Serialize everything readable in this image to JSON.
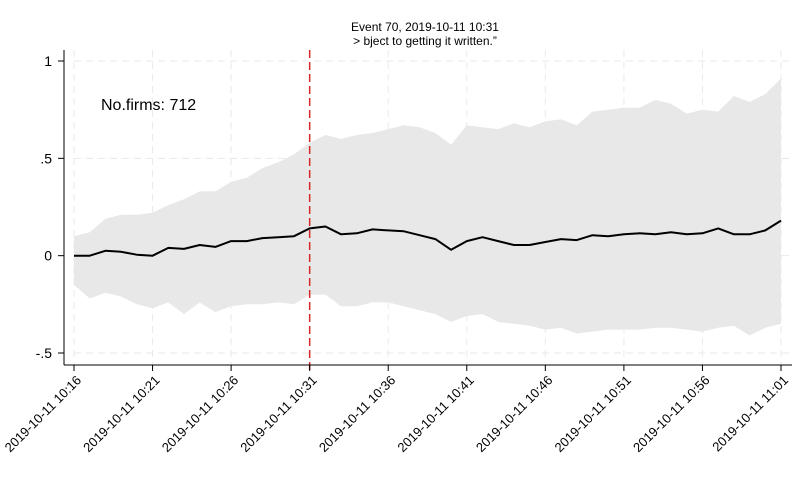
{
  "chart_data": {
    "type": "line",
    "title": "Event 70, 2019-10-11 10:31",
    "subtitle": "> bject to getting it written.”",
    "annotation": "No.firms: 712",
    "x": [
      "10:16",
      "10:17",
      "10:18",
      "10:19",
      "10:20",
      "10:21",
      "10:22",
      "10:23",
      "10:24",
      "10:25",
      "10:26",
      "10:27",
      "10:28",
      "10:29",
      "10:30",
      "10:31",
      "10:32",
      "10:33",
      "10:34",
      "10:35",
      "10:36",
      "10:37",
      "10:38",
      "10:39",
      "10:40",
      "10:41",
      "10:42",
      "10:43",
      "10:44",
      "10:45",
      "10:46",
      "10:47",
      "10:48",
      "10:49",
      "10:50",
      "10:51",
      "10:52",
      "10:53",
      "10:54",
      "10:55",
      "10:56",
      "10:57",
      "10:58",
      "10:59",
      "10:60",
      "11:01"
    ],
    "x_tick_labels": [
      "2019-10-11 10:16",
      "2019-10-11 10:21",
      "2019-10-11 10:26",
      "2019-10-11 10:31",
      "2019-10-11 10:36",
      "2019-10-11 10:41",
      "2019-10-11 10:46",
      "2019-10-11 10:51",
      "2019-10-11 10:56",
      "2019-10-11 11:01"
    ],
    "y_ticks": [
      {
        "value": 1,
        "label": "1"
      },
      {
        "value": 0.5,
        "label": ".5"
      },
      {
        "value": 0,
        "label": "0"
      },
      {
        "value": -0.5,
        "label": "-.5"
      }
    ],
    "ylim": [
      -0.55,
      1.05
    ],
    "event_minute": 15,
    "series": [
      {
        "type": "line",
        "color": "#000000",
        "values": [
          0.0,
          0.0,
          0.025,
          0.02,
          0.005,
          0.0,
          0.04,
          0.035,
          0.055,
          0.045,
          0.075,
          0.075,
          0.09,
          0.095,
          0.1,
          0.14,
          0.15,
          0.11,
          0.115,
          0.135,
          0.13,
          0.125,
          0.105,
          0.085,
          0.03,
          0.075,
          0.095,
          0.075,
          0.055,
          0.055,
          0.07,
          0.085,
          0.08,
          0.105,
          0.1,
          0.11,
          0.115,
          0.11,
          0.12,
          0.11,
          0.115,
          0.14,
          0.11,
          0.11,
          0.13,
          0.18
        ]
      },
      {
        "type": "band",
        "color": "#e8e8e8",
        "upper": [
          0.1,
          0.12,
          0.19,
          0.21,
          0.21,
          0.22,
          0.26,
          0.29,
          0.33,
          0.33,
          0.38,
          0.4,
          0.45,
          0.48,
          0.52,
          0.58,
          0.62,
          0.6,
          0.62,
          0.63,
          0.65,
          0.67,
          0.66,
          0.63,
          0.57,
          0.67,
          0.66,
          0.65,
          0.68,
          0.66,
          0.69,
          0.7,
          0.67,
          0.74,
          0.75,
          0.76,
          0.76,
          0.8,
          0.78,
          0.73,
          0.75,
          0.74,
          0.82,
          0.79,
          0.83,
          0.91
        ],
        "lower": [
          -0.15,
          -0.22,
          -0.19,
          -0.21,
          -0.25,
          -0.27,
          -0.24,
          -0.3,
          -0.24,
          -0.29,
          -0.26,
          -0.25,
          -0.25,
          -0.24,
          -0.25,
          -0.2,
          -0.2,
          -0.26,
          -0.26,
          -0.24,
          -0.24,
          -0.26,
          -0.28,
          -0.3,
          -0.34,
          -0.31,
          -0.3,
          -0.34,
          -0.35,
          -0.36,
          -0.38,
          -0.37,
          -0.4,
          -0.39,
          -0.38,
          -0.38,
          -0.38,
          -0.37,
          -0.37,
          -0.38,
          -0.39,
          -0.37,
          -0.36,
          -0.41,
          -0.37,
          -0.35
        ]
      }
    ],
    "event_line_color": "#d62728",
    "grid": true,
    "legend": "none"
  }
}
